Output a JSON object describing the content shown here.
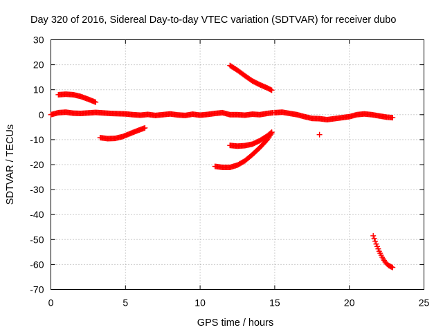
{
  "chart_data": {
    "type": "scatter",
    "title": "Day 320 of 2016, Sidereal Day-to-day VTEC variation (SDTVAR) for receiver dubo",
    "xlabel": "GPS time / hours",
    "ylabel": "SDTVAR / TECUs",
    "xlim": [
      0,
      25
    ],
    "ylim": [
      -70,
      30
    ],
    "xticks": [
      0,
      5,
      10,
      15,
      20,
      25
    ],
    "yticks": [
      30,
      20,
      10,
      0,
      -10,
      -20,
      -30,
      -40,
      -50,
      -60,
      -70
    ],
    "grid": true,
    "marker": "+",
    "color": "#ff0000",
    "series": [
      {
        "x": [
          0.0,
          0.5,
          1.0,
          1.5,
          2.0,
          2.5,
          3.0,
          3.5,
          4.0,
          4.5,
          5.0,
          5.5,
          6.0,
          6.5,
          7.0,
          7.5,
          8.0,
          8.5,
          9.0,
          9.5,
          10.0,
          10.5,
          11.0,
          11.5,
          12.0,
          12.5,
          13.0,
          13.5,
          14.0,
          14.5,
          14.9
        ],
        "y": [
          0.0,
          0.8,
          1.0,
          0.6,
          0.5,
          0.7,
          0.9,
          0.7,
          0.5,
          0.4,
          0.3,
          0.0,
          -0.2,
          0.1,
          -0.3,
          0.0,
          0.3,
          -0.1,
          -0.3,
          0.2,
          -0.2,
          0.1,
          0.5,
          0.8,
          0.0,
          0.0,
          -0.2,
          0.2,
          0.0,
          0.5,
          0.8
        ]
      },
      {
        "x": [
          15.0,
          15.5,
          16.0,
          16.5,
          17.0,
          17.5,
          18.0,
          18.5,
          19.0,
          19.5,
          20.0,
          20.5,
          21.0,
          21.5,
          22.0,
          22.5,
          22.9
        ],
        "y": [
          0.8,
          1.0,
          0.5,
          0.0,
          -0.8,
          -1.5,
          -1.6,
          -2.0,
          -1.6,
          -1.2,
          -0.8,
          0.0,
          0.3,
          0.0,
          -0.5,
          -1.0,
          -1.2
        ]
      },
      {
        "x": [
          0.5,
          1.0,
          1.5,
          2.0,
          2.5,
          3.0
        ],
        "y": [
          8.0,
          8.2,
          8.0,
          7.3,
          6.2,
          5.0
        ]
      },
      {
        "x": [
          3.3,
          3.8,
          4.3,
          4.8,
          5.3,
          5.8,
          6.3
        ],
        "y": [
          -9.2,
          -9.6,
          -9.5,
          -8.8,
          -7.6,
          -6.4,
          -5.3
        ]
      },
      {
        "x": [
          12.0,
          12.5,
          13.0,
          13.5,
          14.0,
          14.5,
          14.8
        ],
        "y": [
          19.7,
          17.8,
          15.6,
          13.5,
          12.0,
          10.7,
          9.8
        ]
      },
      {
        "x": [
          12.0,
          12.5,
          13.0,
          13.5,
          14.0,
          14.5,
          14.8
        ],
        "y": [
          -12.3,
          -12.6,
          -12.4,
          -11.8,
          -10.4,
          -8.5,
          -7.0
        ]
      },
      {
        "x": [
          11.0,
          11.5,
          12.0,
          12.5,
          13.0,
          13.5,
          14.0,
          14.5,
          14.8
        ],
        "y": [
          -20.7,
          -21.1,
          -21.1,
          -20.2,
          -18.5,
          -16.0,
          -13.2,
          -10.0,
          -7.3
        ]
      },
      {
        "x": [
          18.0
        ],
        "y": [
          -8.0
        ]
      },
      {
        "x": [
          21.6,
          21.8,
          22.0,
          22.2,
          22.4,
          22.6,
          22.9
        ],
        "y": [
          -48.5,
          -51.8,
          -54.7,
          -57.1,
          -59.0,
          -60.3,
          -61.2
        ]
      }
    ]
  }
}
